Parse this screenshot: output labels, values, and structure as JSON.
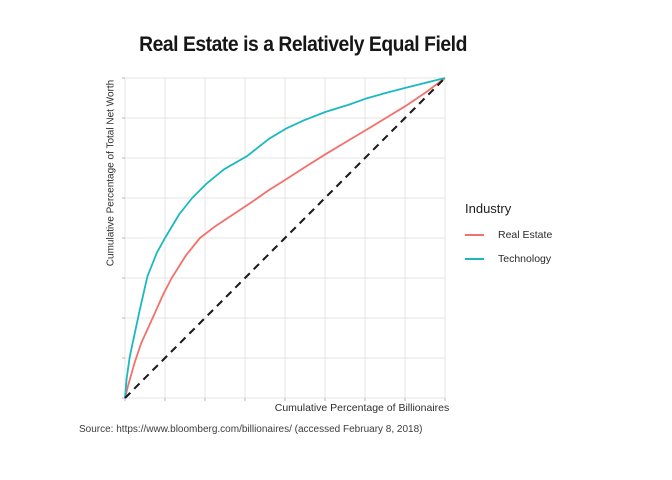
{
  "title": "Real Estate is a Relatively Equal Field",
  "x_axis_label": "Cumulative Percentage of Billionaires",
  "y_axis_label": "Cumulative Percentage of Total Net Worth",
  "source_note": "Source: https://www.bloomberg.com/billionaires/ (accessed February 8, 2018)",
  "legend": {
    "title": "Industry",
    "items": [
      {
        "label": "Real Estate",
        "color": "#F2716B"
      },
      {
        "label": "Technology",
        "color": "#1CB8C0"
      }
    ]
  },
  "colors": {
    "background": "#ffffff",
    "grid": "#e4e4e4",
    "tick": "#b7b7b7",
    "equality_line": "#1c1c1c",
    "real_estate": "#F2716B",
    "technology": "#1CB8C0"
  },
  "chart_data": {
    "type": "line",
    "title": "Real Estate is a Relatively Equal Field",
    "xlabel": "Cumulative Percentage of Billionaires",
    "ylabel": "Cumulative Percentage of Total Net Worth",
    "xlim": [
      0,
      1
    ],
    "ylim": [
      0,
      1
    ],
    "grid": true,
    "grid_divisions": 8,
    "axis_tick_labels": "none",
    "legend_position": "right",
    "legend_title": "Industry",
    "series": [
      {
        "name": "Real Estate",
        "color": "#F2716B",
        "style": "solid",
        "points": [
          [
            0,
            0
          ],
          [
            0.01,
            0.04
          ],
          [
            0.03,
            0.11
          ],
          [
            0.05,
            0.17
          ],
          [
            0.075,
            0.225
          ],
          [
            0.091,
            0.26
          ],
          [
            0.12,
            0.325
          ],
          [
            0.146,
            0.375
          ],
          [
            0.19,
            0.445
          ],
          [
            0.234,
            0.5
          ],
          [
            0.28,
            0.535
          ],
          [
            0.34,
            0.575
          ],
          [
            0.4,
            0.615
          ],
          [
            0.45,
            0.65
          ],
          [
            0.503,
            0.683
          ],
          [
            0.56,
            0.72
          ],
          [
            0.627,
            0.762
          ],
          [
            0.7,
            0.806
          ],
          [
            0.751,
            0.836
          ],
          [
            0.81,
            0.872
          ],
          [
            0.876,
            0.912
          ],
          [
            0.94,
            0.955
          ],
          [
            1,
            1
          ]
        ]
      },
      {
        "name": "Technology",
        "color": "#1CB8C0",
        "style": "solid",
        "points": [
          [
            0,
            0
          ],
          [
            0.005,
            0.06
          ],
          [
            0.015,
            0.13
          ],
          [
            0.03,
            0.2
          ],
          [
            0.045,
            0.27
          ],
          [
            0.07,
            0.38
          ],
          [
            0.1,
            0.455
          ],
          [
            0.125,
            0.5
          ],
          [
            0.17,
            0.575
          ],
          [
            0.21,
            0.625
          ],
          [
            0.255,
            0.67
          ],
          [
            0.31,
            0.715
          ],
          [
            0.38,
            0.755
          ],
          [
            0.45,
            0.81
          ],
          [
            0.503,
            0.842
          ],
          [
            0.56,
            0.868
          ],
          [
            0.627,
            0.894
          ],
          [
            0.7,
            0.917
          ],
          [
            0.751,
            0.935
          ],
          [
            0.81,
            0.952
          ],
          [
            0.876,
            0.969
          ],
          [
            0.94,
            0.985
          ],
          [
            1,
            1
          ]
        ]
      },
      {
        "name": "equality_line",
        "color": "#1c1c1c",
        "style": "dashed",
        "points": [
          [
            0,
            0
          ],
          [
            1,
            1
          ]
        ]
      }
    ]
  }
}
